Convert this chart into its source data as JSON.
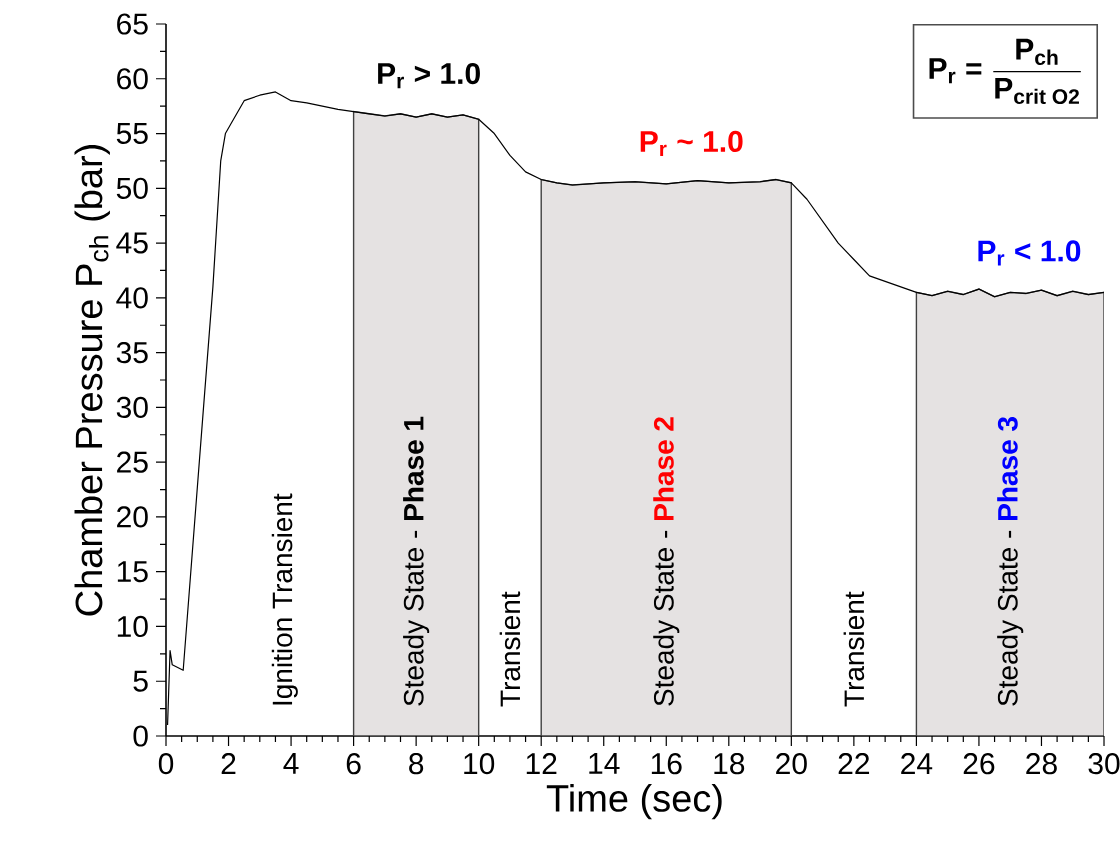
{
  "chart_data": {
    "type": "line",
    "xlabel": "Time (sec)",
    "ylabel": "Chamber Pressure P$_{ch}$ (bar)",
    "xlim": [
      0,
      30
    ],
    "xticks": [
      0,
      2,
      4,
      6,
      8,
      10,
      12,
      14,
      16,
      18,
      20,
      22,
      24,
      26,
      28,
      30
    ],
    "ylim": [
      0,
      65
    ],
    "yticks": [
      0,
      5,
      10,
      15,
      20,
      25,
      30,
      35,
      40,
      45,
      50,
      55,
      60,
      65
    ],
    "marker": "none",
    "line_style": "solid",
    "series": [
      {
        "color": "#000000",
        "x": [
          0.05,
          0.13,
          0.2,
          0.55,
          1.2,
          1.5,
          1.75,
          1.9,
          2.1,
          2.5,
          3,
          3.5,
          4,
          4.5,
          5,
          5.5,
          6,
          6.5,
          7,
          7.5,
          8,
          8.5,
          9,
          9.5,
          10,
          10.5,
          11,
          11.5,
          12,
          12.5,
          13,
          14,
          15,
          16,
          17,
          18,
          19,
          19.5,
          20,
          20.5,
          21,
          21.5,
          22,
          22.5,
          23,
          23.5,
          24,
          24.5,
          25,
          25.5,
          26,
          26.5,
          27,
          27.5,
          28,
          28.5,
          29,
          29.5,
          30
        ],
        "values": [
          1,
          7.8,
          6.5,
          6,
          30,
          41,
          52.5,
          55,
          56,
          58,
          58.5,
          58.8,
          58,
          57.8,
          57.5,
          57.2,
          57,
          56.8,
          56.6,
          56.8,
          56.5,
          56.8,
          56.5,
          56.7,
          56.3,
          55,
          53,
          51.5,
          50.8,
          50.5,
          50.3,
          50.5,
          50.6,
          50.4,
          50.7,
          50.5,
          50.6,
          50.8,
          50.5,
          49,
          47,
          45,
          43.5,
          42,
          41.5,
          41,
          40.5,
          40.2,
          40.6,
          40.3,
          40.8,
          40.1,
          40.5,
          40.4,
          40.7,
          40.2,
          40.6,
          40.3,
          40.5
        ]
      }
    ],
    "bands": [
      {
        "axis": "x",
        "from": 6,
        "to": 10,
        "label": "Steady State - **Phase 1**",
        "color": "#e5e2e2"
      },
      {
        "axis": "x",
        "from": 12,
        "to": 20,
        "label": "Steady State - **Phase 2**",
        "color": "#e5e2e2"
      },
      {
        "axis": "x",
        "from": 24,
        "to": 30,
        "label": "Steady State - **Phase 3**",
        "color": "#e5e2e2"
      }
    ],
    "annotations": [
      "P$_{r}$ > 1.0",
      "P$_{r}$ ~ 1.0",
      "P$_{r}$ < 1.0",
      "Ignition Transient",
      "Transient",
      "Transient",
      "\\text{P}_{\\text{r}}\\text{ = }\\dfrac{\\text{P}_{\\text{ch}}}{\\text{P}_{\\text{crit O2}}}"
    ]
  }
}
